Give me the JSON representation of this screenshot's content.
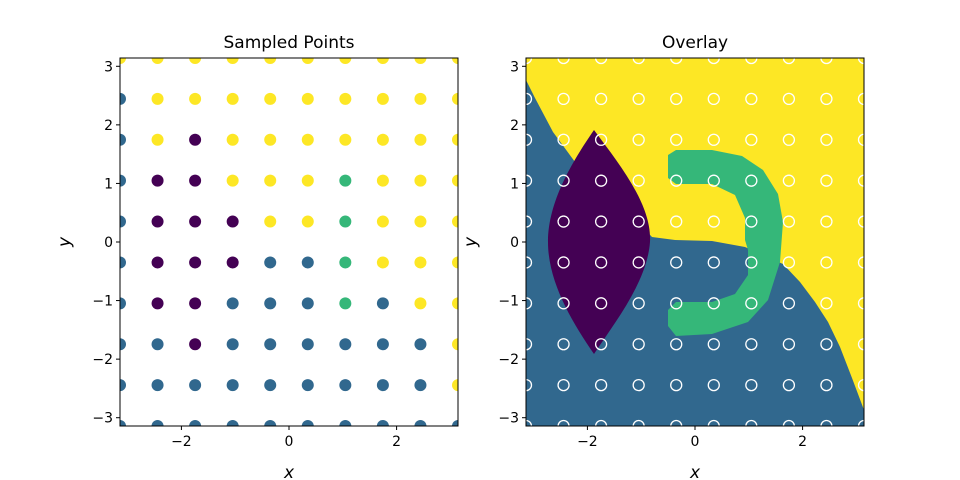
{
  "colors": {
    "class_0": "#440154",
    "class_1": "#31688e",
    "class_2": "#35b779",
    "class_3": "#fde725",
    "overlay_marker_edge": "#ffffff"
  },
  "chart_data": [
    {
      "type": "scatter",
      "title": "Sampled Points",
      "xlabel": "x",
      "ylabel": "y",
      "xlim": [
        -3.14159,
        3.14159
      ],
      "ylim": [
        -3.14159,
        3.14159
      ],
      "xticks": [
        -2,
        0,
        2
      ],
      "yticks": [
        -3,
        -2,
        -1,
        0,
        1,
        2,
        3
      ],
      "xtick_labels": [
        "−2",
        "0",
        "2"
      ],
      "ytick_labels": [
        "−3",
        "−2",
        "−1",
        "0",
        "1",
        "2",
        "3"
      ],
      "grid": false,
      "grid_x": [
        -3.14159,
        -2.44346,
        -1.74533,
        -1.0472,
        -0.34907,
        0.34907,
        1.0472,
        1.74533,
        2.44346,
        3.14159
      ],
      "grid_y": [
        3.14159,
        2.44346,
        1.74533,
        1.0472,
        0.34907,
        -0.34907,
        -1.0472,
        -1.74533,
        -2.44346,
        -3.14159
      ],
      "class_rows_top_to_bottom": [
        [
          3,
          3,
          3,
          3,
          3,
          3,
          3,
          3,
          3,
          3
        ],
        [
          1,
          3,
          3,
          3,
          3,
          3,
          3,
          3,
          3,
          3
        ],
        [
          1,
          3,
          0,
          3,
          3,
          3,
          3,
          3,
          3,
          3
        ],
        [
          1,
          0,
          0,
          3,
          3,
          3,
          2,
          3,
          3,
          3
        ],
        [
          1,
          0,
          0,
          0,
          3,
          3,
          2,
          3,
          3,
          3
        ],
        [
          1,
          0,
          0,
          0,
          1,
          1,
          2,
          3,
          3,
          3
        ],
        [
          1,
          0,
          0,
          1,
          1,
          1,
          2,
          1,
          3,
          3
        ],
        [
          1,
          1,
          0,
          1,
          1,
          1,
          1,
          1,
          1,
          3
        ],
        [
          1,
          1,
          1,
          1,
          1,
          1,
          1,
          1,
          1,
          3
        ],
        [
          1,
          1,
          1,
          1,
          1,
          1,
          1,
          1,
          1,
          1
        ]
      ]
    },
    {
      "type": "scatter",
      "title": "Overlay",
      "xlabel": "x",
      "ylabel": "y",
      "xlim": [
        -3.14159,
        3.14159
      ],
      "ylim": [
        -3.14159,
        3.14159
      ],
      "xticks": [
        -2,
        0,
        2
      ],
      "yticks": [
        -3,
        -2,
        -1,
        0,
        1,
        2,
        3
      ],
      "xtick_labels": [
        "−2",
        "0",
        "2"
      ],
      "ytick_labels": [
        "−3",
        "−2",
        "−1",
        "0",
        "1",
        "2",
        "3"
      ],
      "grid": false,
      "background": "decision regions: class_3 (yellow) upper-right, class_1 (blue) lower-left, class_0 (purple) lens region around x≈-1.8, class_2 (green) C-shaped arc around x≈0.5",
      "markers": "same 10×10 sampled grid, hollow white circles"
    }
  ]
}
